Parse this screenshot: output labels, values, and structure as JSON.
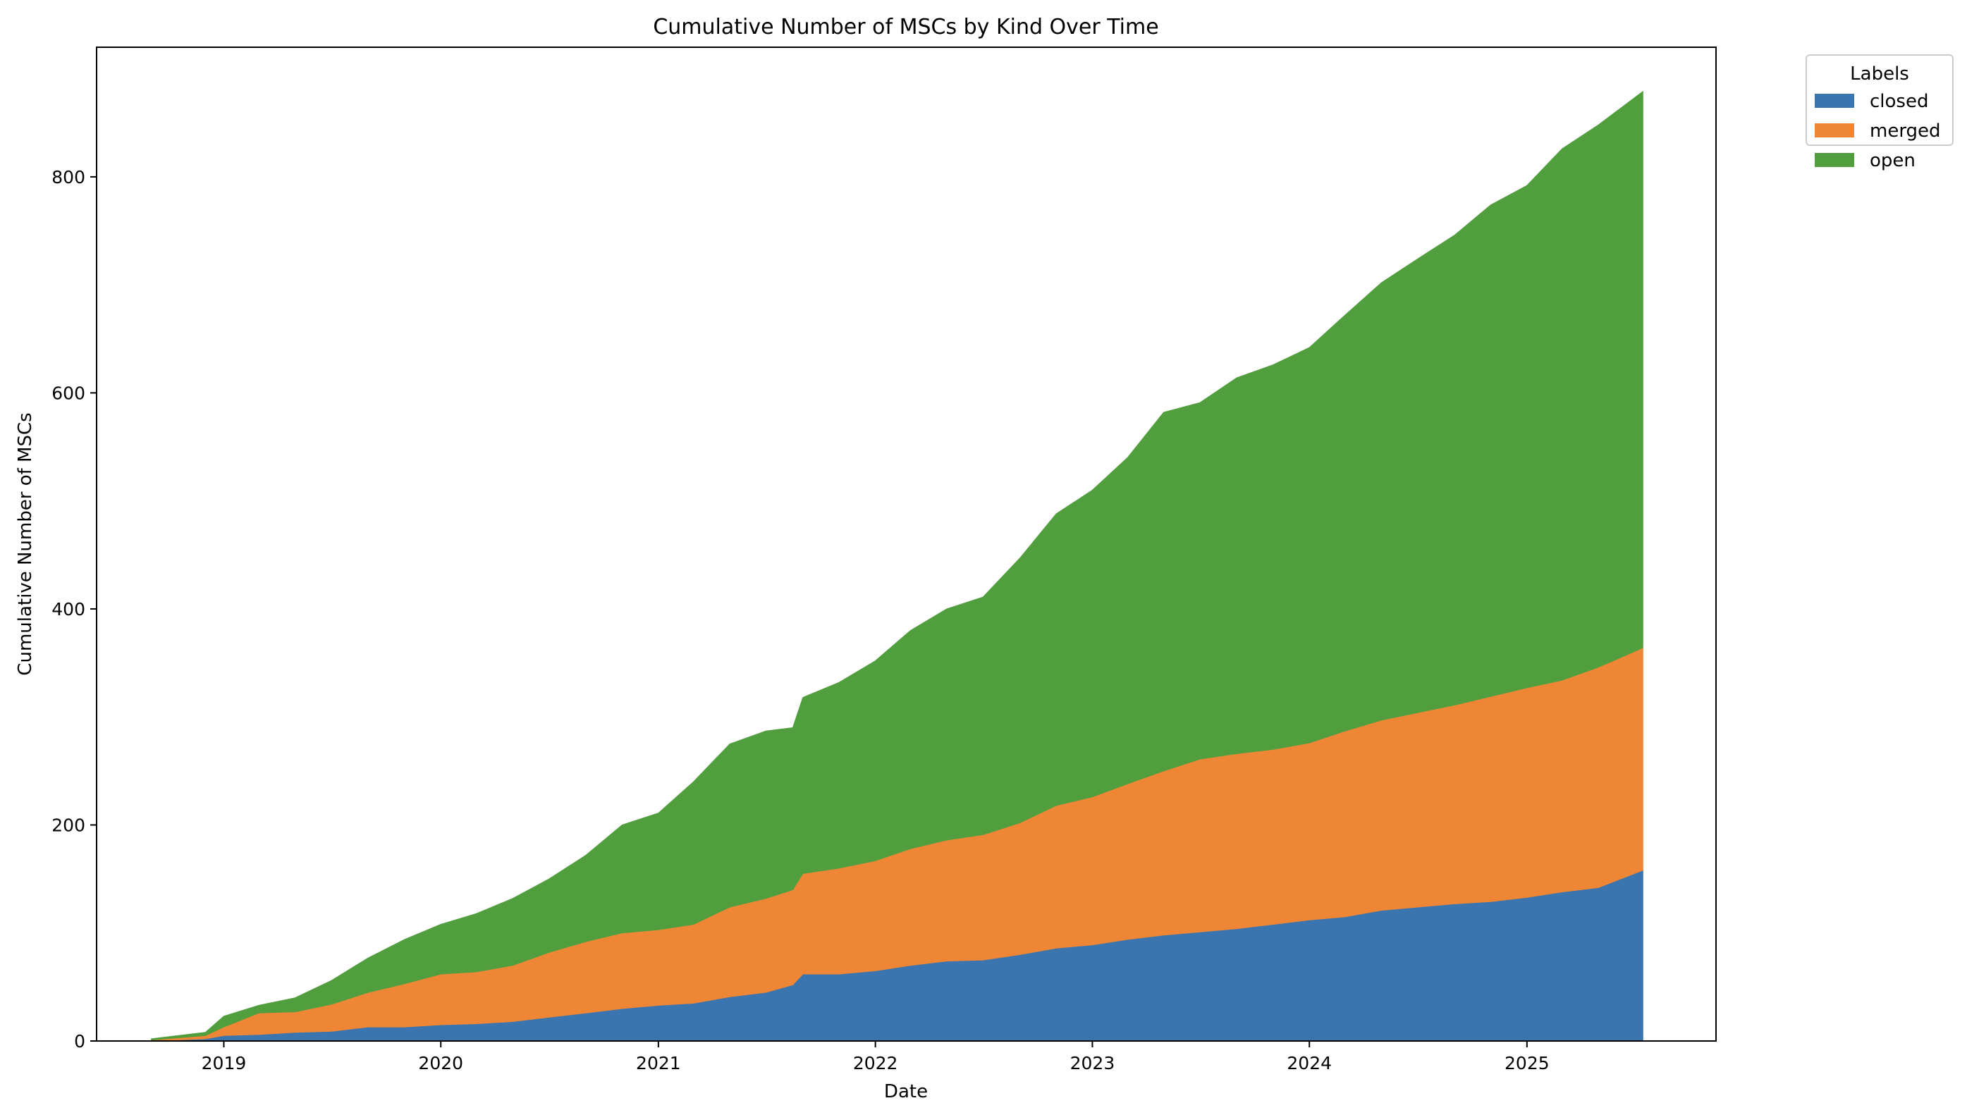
{
  "chart_data": {
    "type": "area",
    "stacked": true,
    "title": "Cumulative Number of MSCs by Kind Over Time",
    "xlabel": "Date",
    "ylabel": "Cumulative Number of MSCs",
    "xlim": [
      "2018-06-01",
      "2025-11-15"
    ],
    "ylim": [
      0,
      920
    ],
    "x_ticks": [
      "2019",
      "2020",
      "2021",
      "2022",
      "2023",
      "2024",
      "2025"
    ],
    "y_ticks": [
      0,
      200,
      400,
      600,
      800
    ],
    "grid": false,
    "legend": {
      "title": "Labels",
      "placement": "outside top-right"
    },
    "x": [
      "2018-09-01",
      "2018-12-01",
      "2019-01-01",
      "2019-03-01",
      "2019-05-01",
      "2019-07-01",
      "2019-09-01",
      "2019-11-01",
      "2020-01-01",
      "2020-03-01",
      "2020-05-01",
      "2020-07-01",
      "2020-09-01",
      "2020-11-01",
      "2021-01-01",
      "2021-03-01",
      "2021-05-01",
      "2021-07-01",
      "2021-08-15",
      "2021-09-01",
      "2021-11-01",
      "2022-01-01",
      "2022-03-01",
      "2022-05-01",
      "2022-07-01",
      "2022-09-01",
      "2022-11-01",
      "2023-01-01",
      "2023-03-01",
      "2023-05-01",
      "2023-07-01",
      "2023-09-01",
      "2023-11-01",
      "2024-01-01",
      "2024-03-01",
      "2024-05-01",
      "2024-07-01",
      "2024-09-01",
      "2024-11-01",
      "2025-01-01",
      "2025-03-01",
      "2025-05-01",
      "2025-07-15"
    ],
    "series": [
      {
        "name": "closed",
        "color": "#3b75af",
        "values": [
          0,
          2,
          5,
          6,
          8,
          9,
          13,
          13,
          15,
          16,
          18,
          22,
          26,
          30,
          33,
          35,
          41,
          45,
          52,
          62,
          62,
          65,
          70,
          74,
          75,
          80,
          86,
          89,
          94,
          98,
          101,
          104,
          108,
          112,
          115,
          121,
          124,
          127,
          129,
          133,
          138,
          142,
          158
        ]
      },
      {
        "name": "merged",
        "color": "#ef8636",
        "values": [
          1,
          3,
          8,
          20,
          19,
          25,
          32,
          40,
          47,
          48,
          52,
          60,
          66,
          70,
          70,
          73,
          83,
          87,
          88,
          93,
          98,
          102,
          108,
          112,
          116,
          122,
          132,
          137,
          144,
          152,
          160,
          162,
          162,
          164,
          172,
          176,
          180,
          184,
          190,
          194,
          196,
          204,
          206
        ]
      },
      {
        "name": "open",
        "color": "#519e3e",
        "values": [
          1,
          3,
          10,
          7,
          13,
          22,
          32,
          41,
          46,
          54,
          62,
          68,
          80,
          100,
          108,
          132,
          151,
          155,
          150,
          163,
          172,
          185,
          202,
          214,
          220,
          245,
          270,
          284,
          302,
          332,
          330,
          348,
          356,
          366,
          385,
          405,
          420,
          435,
          455,
          465,
          492,
          502,
          515
        ]
      }
    ]
  }
}
